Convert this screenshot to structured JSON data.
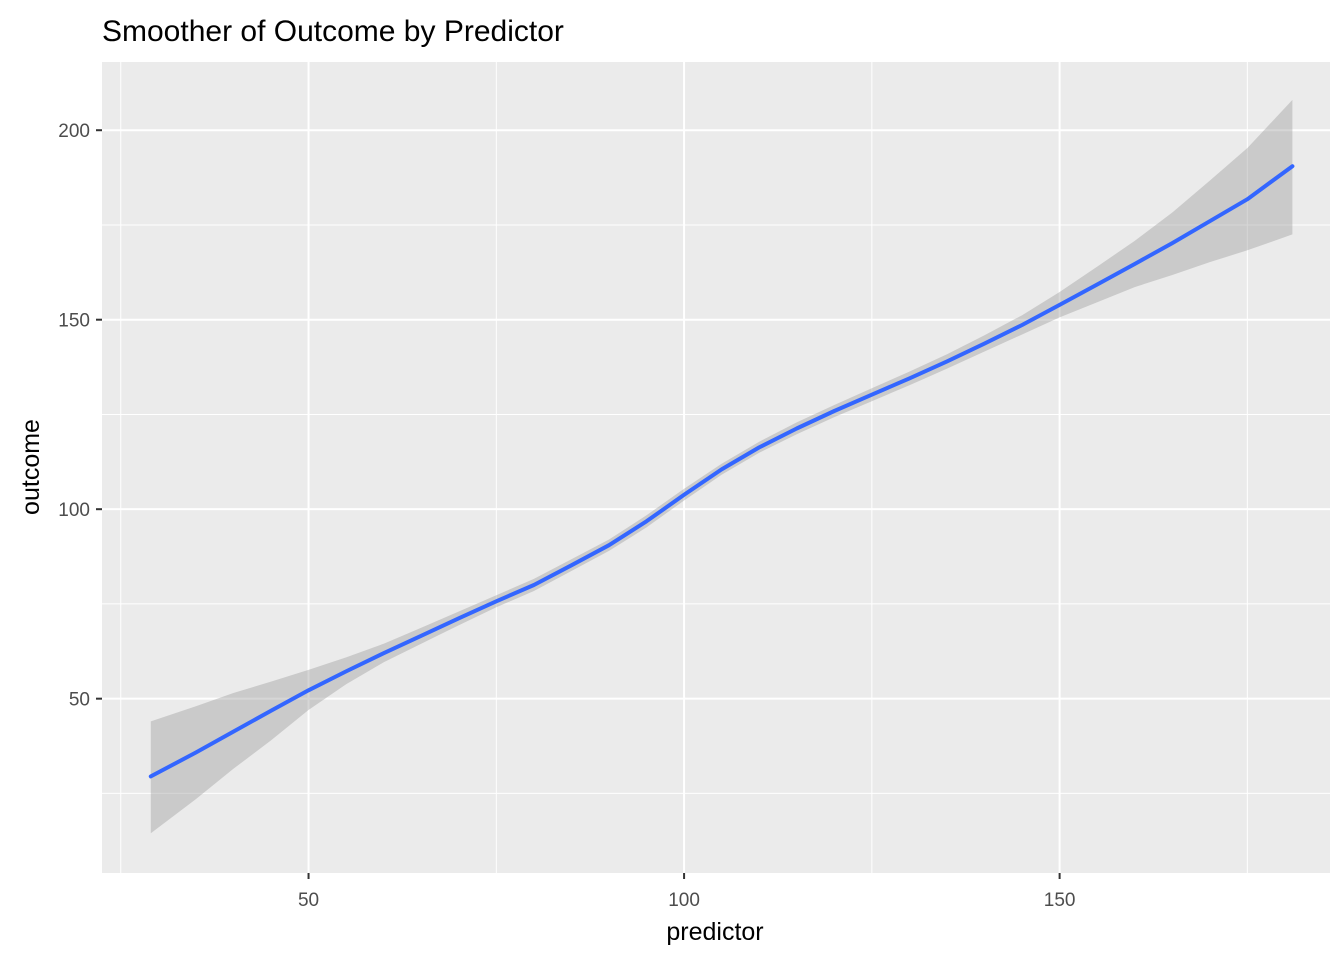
{
  "chart_data": {
    "type": "line",
    "title": "Smoother of Outcome by Predictor",
    "xlabel": "predictor",
    "ylabel": "outcome",
    "xlim": [
      22.5,
      186
    ],
    "ylim": [
      4,
      218
    ],
    "x_ticks": [
      50,
      100,
      150
    ],
    "y_ticks": [
      50,
      100,
      150,
      200
    ],
    "x_minor_ticks": [
      25,
      75,
      125,
      175
    ],
    "y_minor_ticks": [
      25,
      75,
      125,
      175
    ],
    "grid": true,
    "legend": "none",
    "colors": {
      "panel_background": "#ebebeb",
      "grid": "#ffffff",
      "line": "#3366ff",
      "ribbon": "#999999"
    },
    "series": [
      {
        "x": [
          29,
          35,
          40,
          45,
          50,
          55,
          60,
          65,
          70,
          75,
          80,
          85,
          90,
          95,
          100,
          105,
          110,
          115,
          120,
          125,
          130,
          135,
          140,
          145,
          150,
          155,
          160,
          165,
          170,
          175,
          181
        ],
        "y": [
          29.5,
          35.8,
          41.3,
          46.8,
          52.2,
          57.2,
          62.0,
          66.6,
          71.2,
          75.7,
          80.0,
          85.2,
          90.5,
          96.8,
          103.8,
          110.5,
          116.3,
          121.3,
          125.9,
          130.2,
          134.5,
          139.0,
          143.7,
          148.6,
          153.9,
          159.3,
          164.7,
          170.2,
          176.0,
          181.8,
          190.5
        ],
        "lower": [
          14.5,
          23.5,
          31.5,
          39.0,
          47.0,
          53.8,
          59.6,
          64.5,
          69.4,
          74.1,
          78.4,
          83.7,
          89.0,
          95.2,
          102.3,
          109.1,
          114.9,
          119.8,
          124.3,
          128.5,
          132.7,
          137.1,
          141.6,
          146.1,
          150.6,
          154.6,
          158.6,
          161.8,
          165.2,
          168.3,
          172.5
        ],
        "upper": [
          44.0,
          48.0,
          51.5,
          54.5,
          57.6,
          60.9,
          64.5,
          68.7,
          73.0,
          77.3,
          81.6,
          86.8,
          92.0,
          98.4,
          105.4,
          112.0,
          117.8,
          122.9,
          127.5,
          131.9,
          136.3,
          140.9,
          145.9,
          151.2,
          157.3,
          164.0,
          170.8,
          178.3,
          186.7,
          195.3,
          208.0
        ]
      }
    ]
  }
}
